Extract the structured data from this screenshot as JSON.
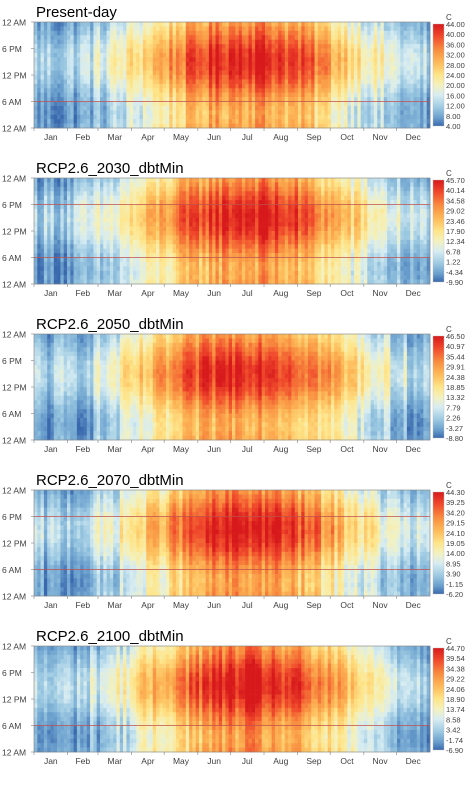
{
  "chart_data": [
    {
      "type": "heatmap",
      "title": "Present-day",
      "unit": "C",
      "y_ticks": [
        "12 AM",
        "6 PM",
        "12 PM",
        "6 AM",
        "12 AM"
      ],
      "x_ticks": [
        "Jan",
        "Feb",
        "Mar",
        "Apr",
        "May",
        "Jun",
        "Jul",
        "Aug",
        "Sep",
        "Oct",
        "Nov",
        "Dec"
      ],
      "scale_values": [
        44.0,
        40.0,
        36.0,
        32.0,
        28.0,
        24.0,
        20.0,
        16.0,
        12.0,
        8.0,
        4.0
      ],
      "scale_labels": [
        "44.00",
        "40.00",
        "36.00",
        "32.00",
        "28.00",
        "24.00",
        "20.00",
        "16.00",
        "12.00",
        "8.00",
        "4.00"
      ],
      "summer_peak_months": [
        "Apr",
        "May",
        "Jun",
        "Jul",
        "Aug",
        "Sep"
      ],
      "ref_hours": [
        6
      ]
    },
    {
      "type": "heatmap",
      "title": "RCP2.6_2030_dbtMin",
      "unit": "C",
      "y_ticks": [
        "12 AM",
        "6 PM",
        "12 PM",
        "6 AM",
        "12 AM"
      ],
      "x_ticks": [
        "Jan",
        "Feb",
        "Mar",
        "Apr",
        "May",
        "Jun",
        "Jul",
        "Aug",
        "Sep",
        "Oct",
        "Nov",
        "Dec"
      ],
      "scale_values": [
        45.7,
        40.14,
        34.58,
        29.02,
        23.46,
        17.9,
        12.34,
        6.78,
        1.22,
        -4.34,
        -9.9
      ],
      "scale_labels": [
        "45.70",
        "40.14",
        "34.58",
        "29.02",
        "23.46",
        "17.90",
        "12.34",
        "6.78",
        "1.22",
        "-4.34",
        "-9.90"
      ],
      "summer_peak_months": [
        "Apr",
        "May",
        "Jun",
        "Jul",
        "Aug",
        "Sep"
      ],
      "ref_hours": [
        6,
        18
      ]
    },
    {
      "type": "heatmap",
      "title": "RCP2.6_2050_dbtMin",
      "unit": "C",
      "y_ticks": [
        "12 AM",
        "6 PM",
        "12 PM",
        "6 AM",
        "12 AM"
      ],
      "x_ticks": [
        "Jan",
        "Feb",
        "Mar",
        "Apr",
        "May",
        "Jun",
        "Jul",
        "Aug",
        "Sep",
        "Oct",
        "Nov",
        "Dec"
      ],
      "scale_values": [
        46.5,
        40.97,
        35.44,
        29.91,
        24.38,
        18.85,
        13.32,
        7.79,
        2.26,
        -3.27,
        -8.8
      ],
      "scale_labels": [
        "46.50",
        "40.97",
        "35.44",
        "29.91",
        "24.38",
        "18.85",
        "13.32",
        "7.79",
        "2.26",
        "-3.27",
        "-8.80"
      ],
      "summer_peak_months": [
        "Apr",
        "May",
        "Jun",
        "Jul",
        "Aug",
        "Sep"
      ],
      "ref_hours": []
    },
    {
      "type": "heatmap",
      "title": "RCP2.6_2070_dbtMin",
      "unit": "C",
      "y_ticks": [
        "12 AM",
        "6 PM",
        "12 PM",
        "6 AM",
        "12 AM"
      ],
      "x_ticks": [
        "Jan",
        "Feb",
        "Mar",
        "Apr",
        "May",
        "Jun",
        "Jul",
        "Aug",
        "Sep",
        "Oct",
        "Nov",
        "Dec"
      ],
      "scale_values": [
        44.3,
        39.25,
        34.2,
        29.15,
        24.1,
        19.05,
        14.0,
        8.95,
        3.9,
        -1.15,
        -6.2
      ],
      "scale_labels": [
        "44.30",
        "39.25",
        "34.20",
        "29.15",
        "24.10",
        "19.05",
        "14.00",
        "8.95",
        "3.90",
        "-1.15",
        "-6.20"
      ],
      "summer_peak_months": [
        "Apr",
        "May",
        "Jun",
        "Jul",
        "Aug",
        "Sep"
      ],
      "ref_hours": [
        6,
        18
      ]
    },
    {
      "type": "heatmap",
      "title": "RCP2.6_2100_dbtMin",
      "unit": "C",
      "y_ticks": [
        "12 AM",
        "6 PM",
        "12 PM",
        "6 AM",
        "12 AM"
      ],
      "x_ticks": [
        "Jan",
        "Feb",
        "Mar",
        "Apr",
        "May",
        "Jun",
        "Jul",
        "Aug",
        "Sep",
        "Oct",
        "Nov",
        "Dec"
      ],
      "scale_values": [
        44.7,
        39.54,
        34.38,
        29.22,
        24.06,
        18.9,
        13.74,
        8.58,
        3.42,
        -1.74,
        -6.9
      ],
      "scale_labels": [
        "44.70",
        "39.54",
        "34.38",
        "29.22",
        "24.06",
        "18.90",
        "13.74",
        "8.58",
        "3.42",
        "-1.74",
        "-6.90"
      ],
      "summer_peak_months": [
        "Apr",
        "May",
        "Jun",
        "Jul",
        "Aug",
        "Sep"
      ],
      "ref_hours": [
        6
      ]
    }
  ],
  "colors": {
    "scale": [
      "#d7191c",
      "#e8452a",
      "#f46d43",
      "#fb8d4a",
      "#fdae61",
      "#fecb71",
      "#fee090",
      "#f4f0b9",
      "#dbeef0",
      "#abd9e9",
      "#74add1",
      "#4575b4"
    ],
    "ref_line": "#c0504d",
    "text": "#000000",
    "tick_text": "#404040",
    "axis": "#808080"
  }
}
